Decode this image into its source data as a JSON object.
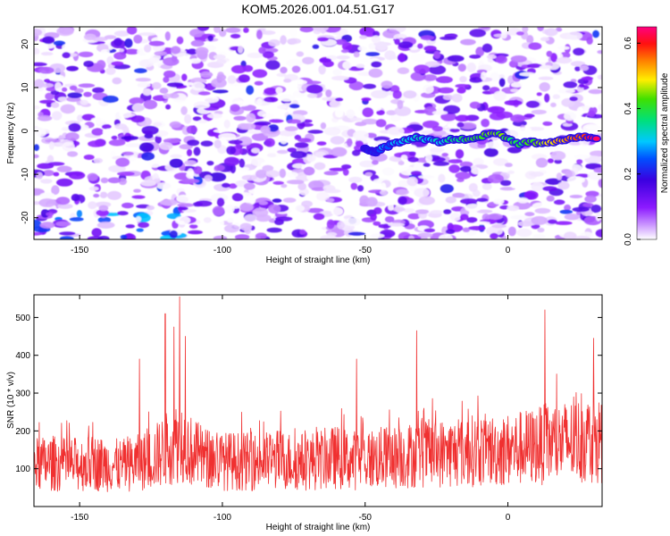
{
  "figure_title": "KOM5.2026.001.04.51.G17",
  "chart_data": [
    {
      "type": "heatmap",
      "title": "KOM5.2026.001.04.51.G17",
      "xlabel": "Height of straight line (km)",
      "ylabel": "Frequency (Hz)",
      "xlim": [
        -166,
        33
      ],
      "ylim": [
        -25,
        24
      ],
      "xticks": [
        -150,
        -100,
        -50,
        0
      ],
      "yticks": [
        -20,
        -10,
        0,
        10,
        20
      ],
      "colorbar": {
        "label": "Normalized spectral amplitude",
        "range": [
          0,
          0.65
        ],
        "ticks": [
          0.0,
          0.2,
          0.4,
          0.6
        ],
        "colormap": "rainbow (violet → blue → cyan → green → yellow → red → magenta)"
      },
      "signal_trace": {
        "x": [
          -50,
          -47,
          -44,
          -40,
          -36,
          -32,
          -28,
          -24,
          -20,
          -16,
          -12,
          -8,
          -4,
          0,
          4,
          8,
          12,
          16,
          20,
          24,
          28,
          32
        ],
        "y": [
          -4,
          -5,
          -4,
          -3,
          -2,
          -1.5,
          -2,
          -2.5,
          -2,
          -2,
          -1.5,
          -1,
          -0.5,
          -2,
          -3,
          -2.5,
          -3,
          -2.5,
          -2,
          -1.5,
          -1.5,
          -1.5
        ],
        "amplitude": [
          0.2,
          0.22,
          0.25,
          0.28,
          0.3,
          0.35,
          0.3,
          0.33,
          0.35,
          0.38,
          0.4,
          0.42,
          0.45,
          0.4,
          0.38,
          0.42,
          0.45,
          0.5,
          0.52,
          0.55,
          0.6,
          0.65
        ]
      },
      "background": "broadband noise, normalized amplitude mostly 0.0–0.15"
    },
    {
      "type": "line",
      "xlabel": "Height of straight line (km)",
      "ylabel": "SNR (10 * v/v)",
      "xlim": [
        -166,
        33
      ],
      "ylim": [
        0,
        560
      ],
      "xticks": [
        -150,
        -100,
        -50,
        0
      ],
      "yticks": [
        100,
        200,
        300,
        400,
        500
      ],
      "series": [
        {
          "name": "SNR",
          "color": "#f03030",
          "x": [
            -166,
            -160,
            -155,
            -150,
            -145,
            -140,
            -135,
            -130,
            -125,
            -120,
            -118,
            -116,
            -115,
            -114,
            -113,
            -110,
            -105,
            -100,
            -95,
            -90,
            -85,
            -80,
            -75,
            -70,
            -65,
            -60,
            -55,
            -50,
            -45,
            -40,
            -35,
            -30,
            -25,
            -20,
            -15,
            -10,
            -5,
            0,
            5,
            10,
            14,
            15,
            20,
            25,
            30,
            33
          ],
          "baseline": [
            110,
            115,
            110,
            112,
            115,
            110,
            108,
            115,
            125,
            150,
            160,
            170,
            180,
            175,
            160,
            140,
            125,
            120,
            120,
            118,
            120,
            125,
            118,
            120,
            125,
            130,
            122,
            125,
            128,
            130,
            135,
            140,
            140,
            142,
            145,
            150,
            148,
            150,
            155,
            160,
            165,
            165,
            170,
            175,
            180,
            175
          ],
          "peaks": [
            {
              "x": -129,
              "y": 390
            },
            {
              "x": -120,
              "y": 510
            },
            {
              "x": -117,
              "y": 475
            },
            {
              "x": -115,
              "y": 555
            },
            {
              "x": -113,
              "y": 450
            },
            {
              "x": -53,
              "y": 390
            },
            {
              "x": -32,
              "y": 465
            },
            {
              "x": 13,
              "y": 520
            },
            {
              "x": 30,
              "y": 445
            }
          ]
        }
      ]
    }
  ]
}
